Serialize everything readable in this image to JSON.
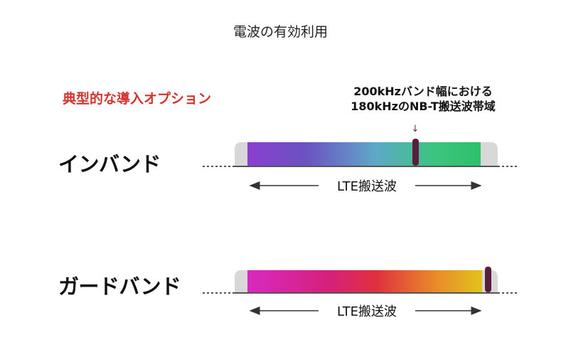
{
  "title": "電波の有効利用",
  "subtitle": "典型的な導入オプション",
  "subtitle_color": "#d6332e",
  "annotation": {
    "line1": "200kHzバンド幅における",
    "line2": "180kHzのNB-T搬送波帯域"
  },
  "annotation_arrow": "↓",
  "annotation_arrow_color": "#6b2a4f",
  "modes": [
    {
      "label": "インバンド",
      "carrier_label": "LTE搬送波",
      "gradient": [
        "#8a3fcf",
        "#6b52c2",
        "#5fa8c8",
        "#3cc47f",
        "#2ec06a"
      ],
      "nb_marker": "in-band",
      "nb_color": "#5a1e3c"
    },
    {
      "label": "ガードバンド",
      "carrier_label": "LTE搬送波",
      "gradient": [
        "#d829c2",
        "#d6207a",
        "#e0303e",
        "#e88a2a",
        "#e3c21c"
      ],
      "nb_marker": "guard-band",
      "nb_color": "#5a1e3c"
    }
  ],
  "guard_color": "#d8d8d8"
}
